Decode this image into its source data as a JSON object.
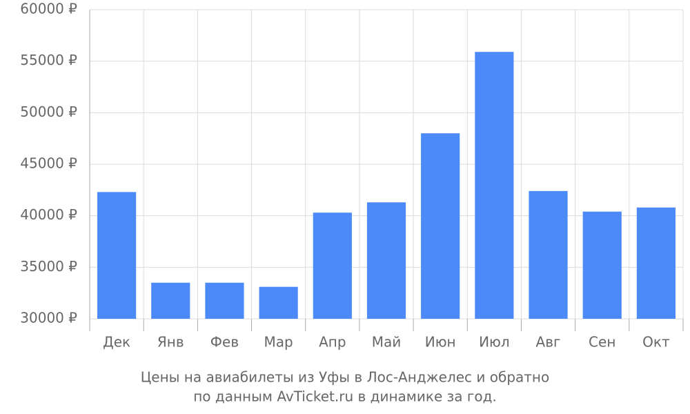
{
  "chart_data": {
    "type": "bar",
    "title": "Цены на авиабилеты из Уфы в Лос-Анджелес и обратно",
    "subtitle": "по данным AvTicket.ru в динамике за год.",
    "categories": [
      "Дек",
      "Янв",
      "Фев",
      "Мар",
      "Апр",
      "Май",
      "Июн",
      "Июл",
      "Авг",
      "Сен",
      "Окт"
    ],
    "values": [
      42300,
      33500,
      33500,
      33100,
      40300,
      41300,
      48000,
      55900,
      42400,
      40400,
      40800
    ],
    "color": "#4d8af9",
    "ylim": [
      30000,
      60000
    ],
    "yticks": [
      {
        "value": 30000,
        "label": "30000 ₽"
      },
      {
        "value": 35000,
        "label": "35000 ₽"
      },
      {
        "value": 40000,
        "label": "40000 ₽"
      },
      {
        "value": 45000,
        "label": "45000 ₽"
      },
      {
        "value": 50000,
        "label": "50000 ₽"
      },
      {
        "value": 55000,
        "label": "55000 ₽"
      },
      {
        "value": 60000,
        "label": "60000 ₽"
      }
    ],
    "grid": true
  }
}
